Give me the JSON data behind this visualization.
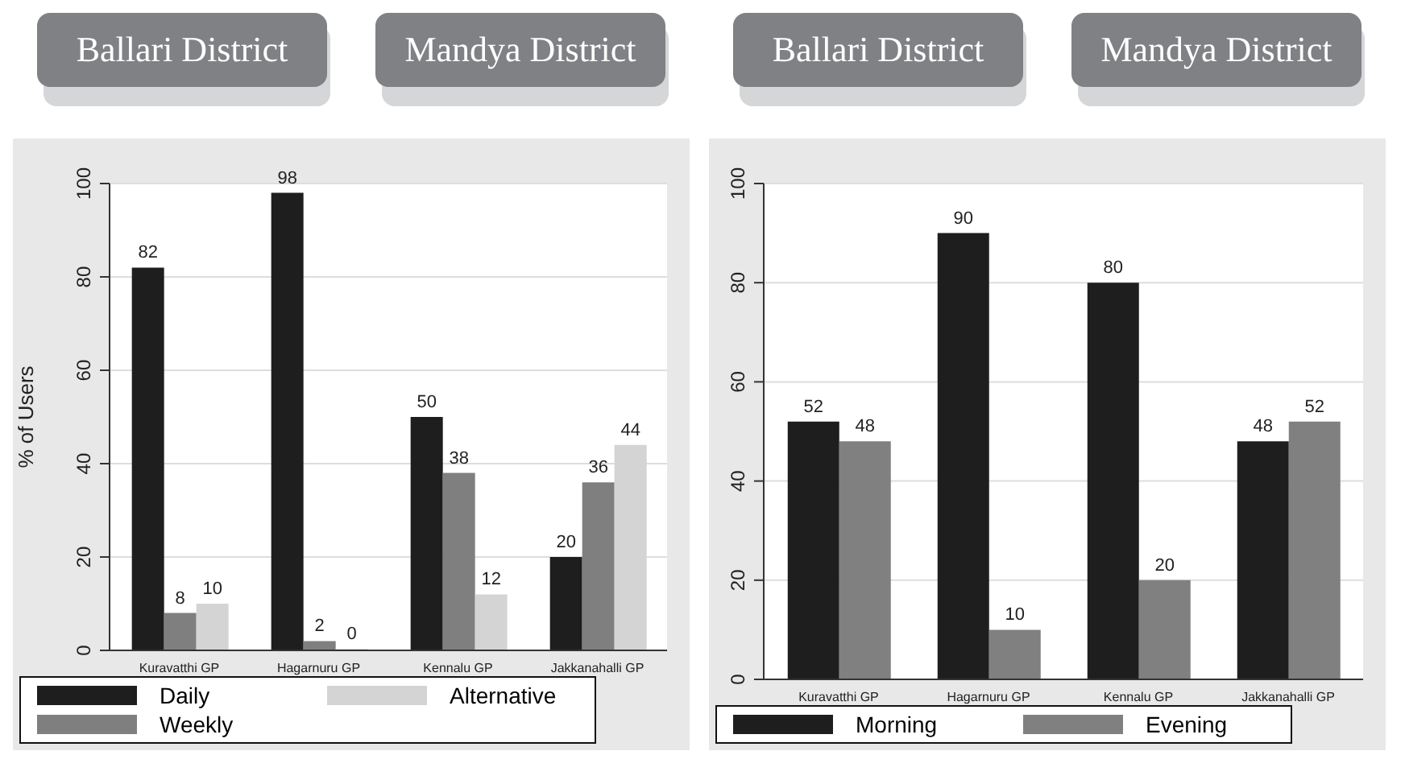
{
  "chart_data": [
    {
      "type": "bar",
      "annotations": [
        "Ballari District",
        "Mandya District"
      ],
      "ylabel": "% of Users",
      "categories": [
        "Kuravatthi GP",
        "Hagarnuru GP",
        "Kennalu GP",
        "Jakkanahalli GP"
      ],
      "series": [
        {
          "name": "Daily",
          "color": "#1e1e1e",
          "values": [
            82,
            98,
            50,
            20
          ]
        },
        {
          "name": "Weekly",
          "color": "#7f7f7f",
          "values": [
            8,
            2,
            38,
            36
          ]
        },
        {
          "name": "Alternative",
          "color": "#d4d4d4",
          "values": [
            10,
            0,
            12,
            44
          ]
        }
      ],
      "ylim": [
        0,
        100
      ],
      "yticks": [
        0,
        20,
        40,
        60,
        80,
        100
      ],
      "grid": "y",
      "legend": "bottom",
      "data_labels": true
    },
    {
      "type": "bar",
      "annotations": [
        "Ballari District",
        "Mandya District"
      ],
      "categories": [
        "Kuravatthi GP",
        "Hagarnuru GP",
        "Kennalu GP",
        "Jakkanahalli GP"
      ],
      "series": [
        {
          "name": "Morning",
          "color": "#1e1e1e",
          "values": [
            52,
            90,
            80,
            48
          ]
        },
        {
          "name": "Evening",
          "color": "#808080",
          "values": [
            48,
            10,
            20,
            52
          ]
        }
      ],
      "ylim": [
        0,
        100
      ],
      "yticks": [
        0,
        20,
        40,
        60,
        80,
        100
      ],
      "grid": "y",
      "legend": "bottom",
      "data_labels": true
    }
  ]
}
